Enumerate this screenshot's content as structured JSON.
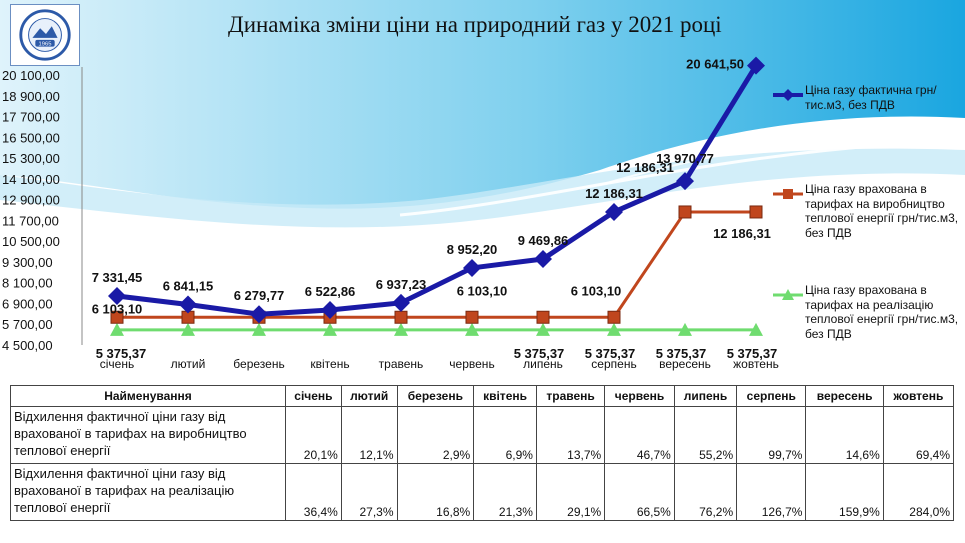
{
  "title": "Динаміка зміни ціни на природний газ  у 2021 році",
  "logo": {
    "text": "КРЕМЕНЧУЦЬКА ТЕЦ",
    "year": "1965"
  },
  "chart_data": {
    "type": "line",
    "categories": [
      "січень",
      "лютий",
      "березень",
      "квітень",
      "травень",
      "червень",
      "липень",
      "серпень",
      "вересень",
      "жовтень"
    ],
    "y_ticks": [
      "4 500,00",
      "5 700,00",
      "6 900,00",
      "8 100,00",
      "9 300,00",
      "10 500,00",
      "11 700,00",
      "12 900,00",
      "14 100,00",
      "15 300,00",
      "16 500,00",
      "17 700,00",
      "18 900,00",
      "20 100,00"
    ],
    "ylim": [
      4500,
      20100
    ],
    "grid": false,
    "legend_position": "right",
    "series": [
      {
        "name": "Ціна газу фактична грн/тис.м3,  без ПДВ",
        "color": "#1a1aa6",
        "marker": "diamond",
        "values": [
          7331.45,
          6841.15,
          6279.77,
          6522.86,
          6937.23,
          8952.2,
          9469.86,
          12186.31,
          13970.77,
          20641.5
        ],
        "labels": [
          "7 331,45",
          "6 841,15",
          "6 279,77",
          "6 522,86",
          "6 937,23",
          "8 952,20",
          "9 469,86",
          "12 186,31",
          "13 970,77",
          "20 641,50"
        ]
      },
      {
        "name": "Ціна газу врахована в тарифах на виробництво теплової енергії грн/тис.м3,  без ПДВ",
        "color": "#c0461d",
        "marker": "square",
        "values": [
          6103.1,
          6103.1,
          6103.1,
          6103.1,
          6103.1,
          6103.1,
          6103.1,
          6103.1,
          12186.31,
          12186.31
        ],
        "labels": [
          "6 103,10",
          "",
          "",
          "",
          "",
          "6 103,10",
          "",
          "6 103,10",
          "12 186,31",
          "12 186,31"
        ]
      },
      {
        "name": "Ціна газу врахована в тарифах на реалізацію теплової енергії грн/тис.м3,  без ПДВ",
        "color": "#6fdc6f",
        "marker": "triangle",
        "values": [
          5375.37,
          5375.37,
          5375.37,
          5375.37,
          5375.37,
          5375.37,
          5375.37,
          5375.37,
          5375.37,
          5375.37
        ],
        "labels": [
          "5 375,37",
          "",
          "",
          "",
          "",
          "",
          "5 375,37",
          "5 375,37",
          "5 375,37",
          "5 375,37"
        ]
      }
    ]
  },
  "table": {
    "header": [
      "Найменування",
      "січень",
      "лютий",
      "березень",
      "квітень",
      "травень",
      "червень",
      "липень",
      "серпень",
      "вересень",
      "жовтень"
    ],
    "rows": [
      {
        "name": "Відхилення фактичної ціни газу від врахованої в тарифах на виробництво теплової енергії",
        "values": [
          "20,1%",
          "12,1%",
          "2,9%",
          "6,9%",
          "13,7%",
          "46,7%",
          "55,2%",
          "99,7%",
          "14,6%",
          "69,4%"
        ]
      },
      {
        "name": "Відхилення фактичної ціни газу від врахованої в тарифах на реалізацію теплової енергії",
        "values": [
          "36,4%",
          "27,3%",
          "16,8%",
          "21,3%",
          "29,1%",
          "66,5%",
          "76,2%",
          "126,7%",
          "159,9%",
          "284,0%"
        ]
      }
    ]
  }
}
